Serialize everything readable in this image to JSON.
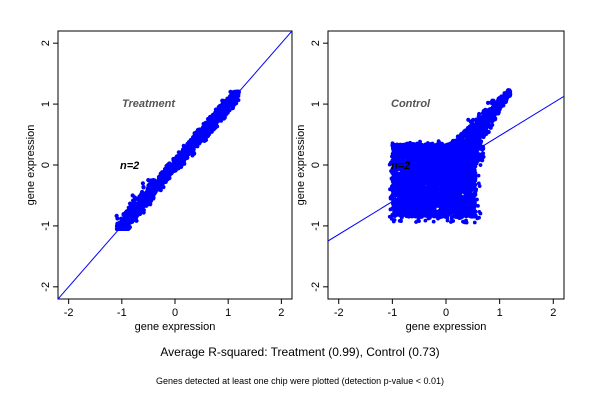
{
  "figure": {
    "caption": "Average R-squared: Treatment (0.99), Control (0.73)",
    "footnote": "Genes detected at least one chip were plotted (detection p-value < 0.01)"
  },
  "chart_data": [
    {
      "type": "scatter",
      "title": "Treatment",
      "annotation": "n=2",
      "xlabel": "gene expression",
      "ylabel": "gene expression",
      "xlim": [
        -2.2,
        2.2
      ],
      "ylim": [
        -2.2,
        2.2
      ],
      "xticks": [
        -2,
        -1,
        0,
        1,
        2
      ],
      "yticks": [
        -2,
        -1,
        0,
        1,
        2
      ],
      "point_color": "#0000ff",
      "line_color": "#0000ff",
      "fit_line": {
        "intercept": 0,
        "slope": 1
      },
      "grid": false,
      "point_cloud": {
        "x_range": [
          -1.1,
          1.2
        ],
        "y_range": [
          -1.05,
          1.2
        ],
        "approx_relation": "y ≈ x",
        "spread_sd": 0.06
      },
      "r_squared": 0.99
    },
    {
      "type": "scatter",
      "title": "Control",
      "annotation": "n=2",
      "xlabel": "gene expression",
      "ylabel": "gene expression",
      "xlim": [
        -2.2,
        2.2
      ],
      "ylim": [
        -2.2,
        2.2
      ],
      "xticks": [
        -2,
        -1,
        0,
        1,
        2
      ],
      "yticks": [
        -2,
        -1,
        0,
        1,
        2
      ],
      "point_color": "#0000ff",
      "line_color": "#0000ff",
      "fit_line": {
        "intercept": -0.06,
        "slope": 0.54
      },
      "grid": false,
      "point_cloud": {
        "x_range": [
          -1.0,
          1.2
        ],
        "y_range": [
          -0.95,
          1.2
        ],
        "dense_block": {
          "x": [
            -1.0,
            0.55
          ],
          "y": [
            -0.85,
            0.35
          ]
        },
        "upper_tail": {
          "from": [
            0.4,
            0.35
          ],
          "to": [
            1.2,
            1.2
          ]
        }
      },
      "r_squared": 0.73
    }
  ]
}
